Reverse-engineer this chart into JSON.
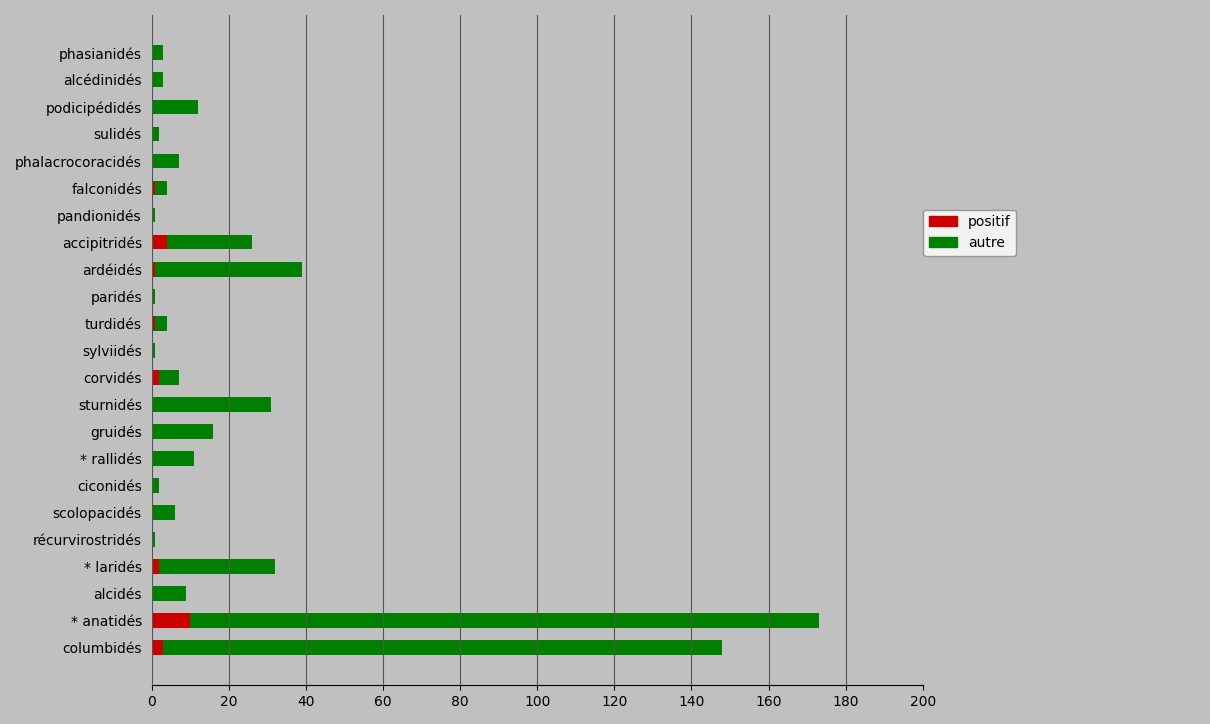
{
  "categories": [
    "phasianidés",
    "alcédinidés",
    "podicipédidés",
    "sulidés",
    "phalacrocoracidés",
    "falconidés",
    "pandionidés",
    "accipitridés",
    "ardéidés",
    "paridés",
    "turdidés",
    "sylviidés",
    "corvidés",
    "sturnidés",
    "gruidés",
    "* rallidés",
    "ciconidés",
    "scolopacidés",
    "récurvirostridés",
    "* laridés",
    "alcidés",
    "* anatidés",
    "columbidés"
  ],
  "positif": [
    0,
    0,
    0,
    0,
    0,
    1,
    0,
    4,
    1,
    0,
    1,
    0,
    2,
    0,
    0,
    0,
    0,
    0,
    0,
    2,
    0,
    10,
    3
  ],
  "autre": [
    3,
    3,
    12,
    2,
    7,
    3,
    1,
    22,
    38,
    1,
    3,
    1,
    5,
    31,
    16,
    11,
    2,
    6,
    1,
    30,
    9,
    163,
    145
  ],
  "color_positif": "#cc0000",
  "color_autre": "#008000",
  "color_background": "#c0c0c0",
  "color_legend_bg": "#ffffff",
  "xlim": [
    0,
    200
  ],
  "xticks": [
    0,
    20,
    40,
    60,
    80,
    100,
    120,
    140,
    160,
    180,
    200
  ],
  "legend_positif": "positif",
  "legend_autre": "autre",
  "bar_height": 0.55
}
